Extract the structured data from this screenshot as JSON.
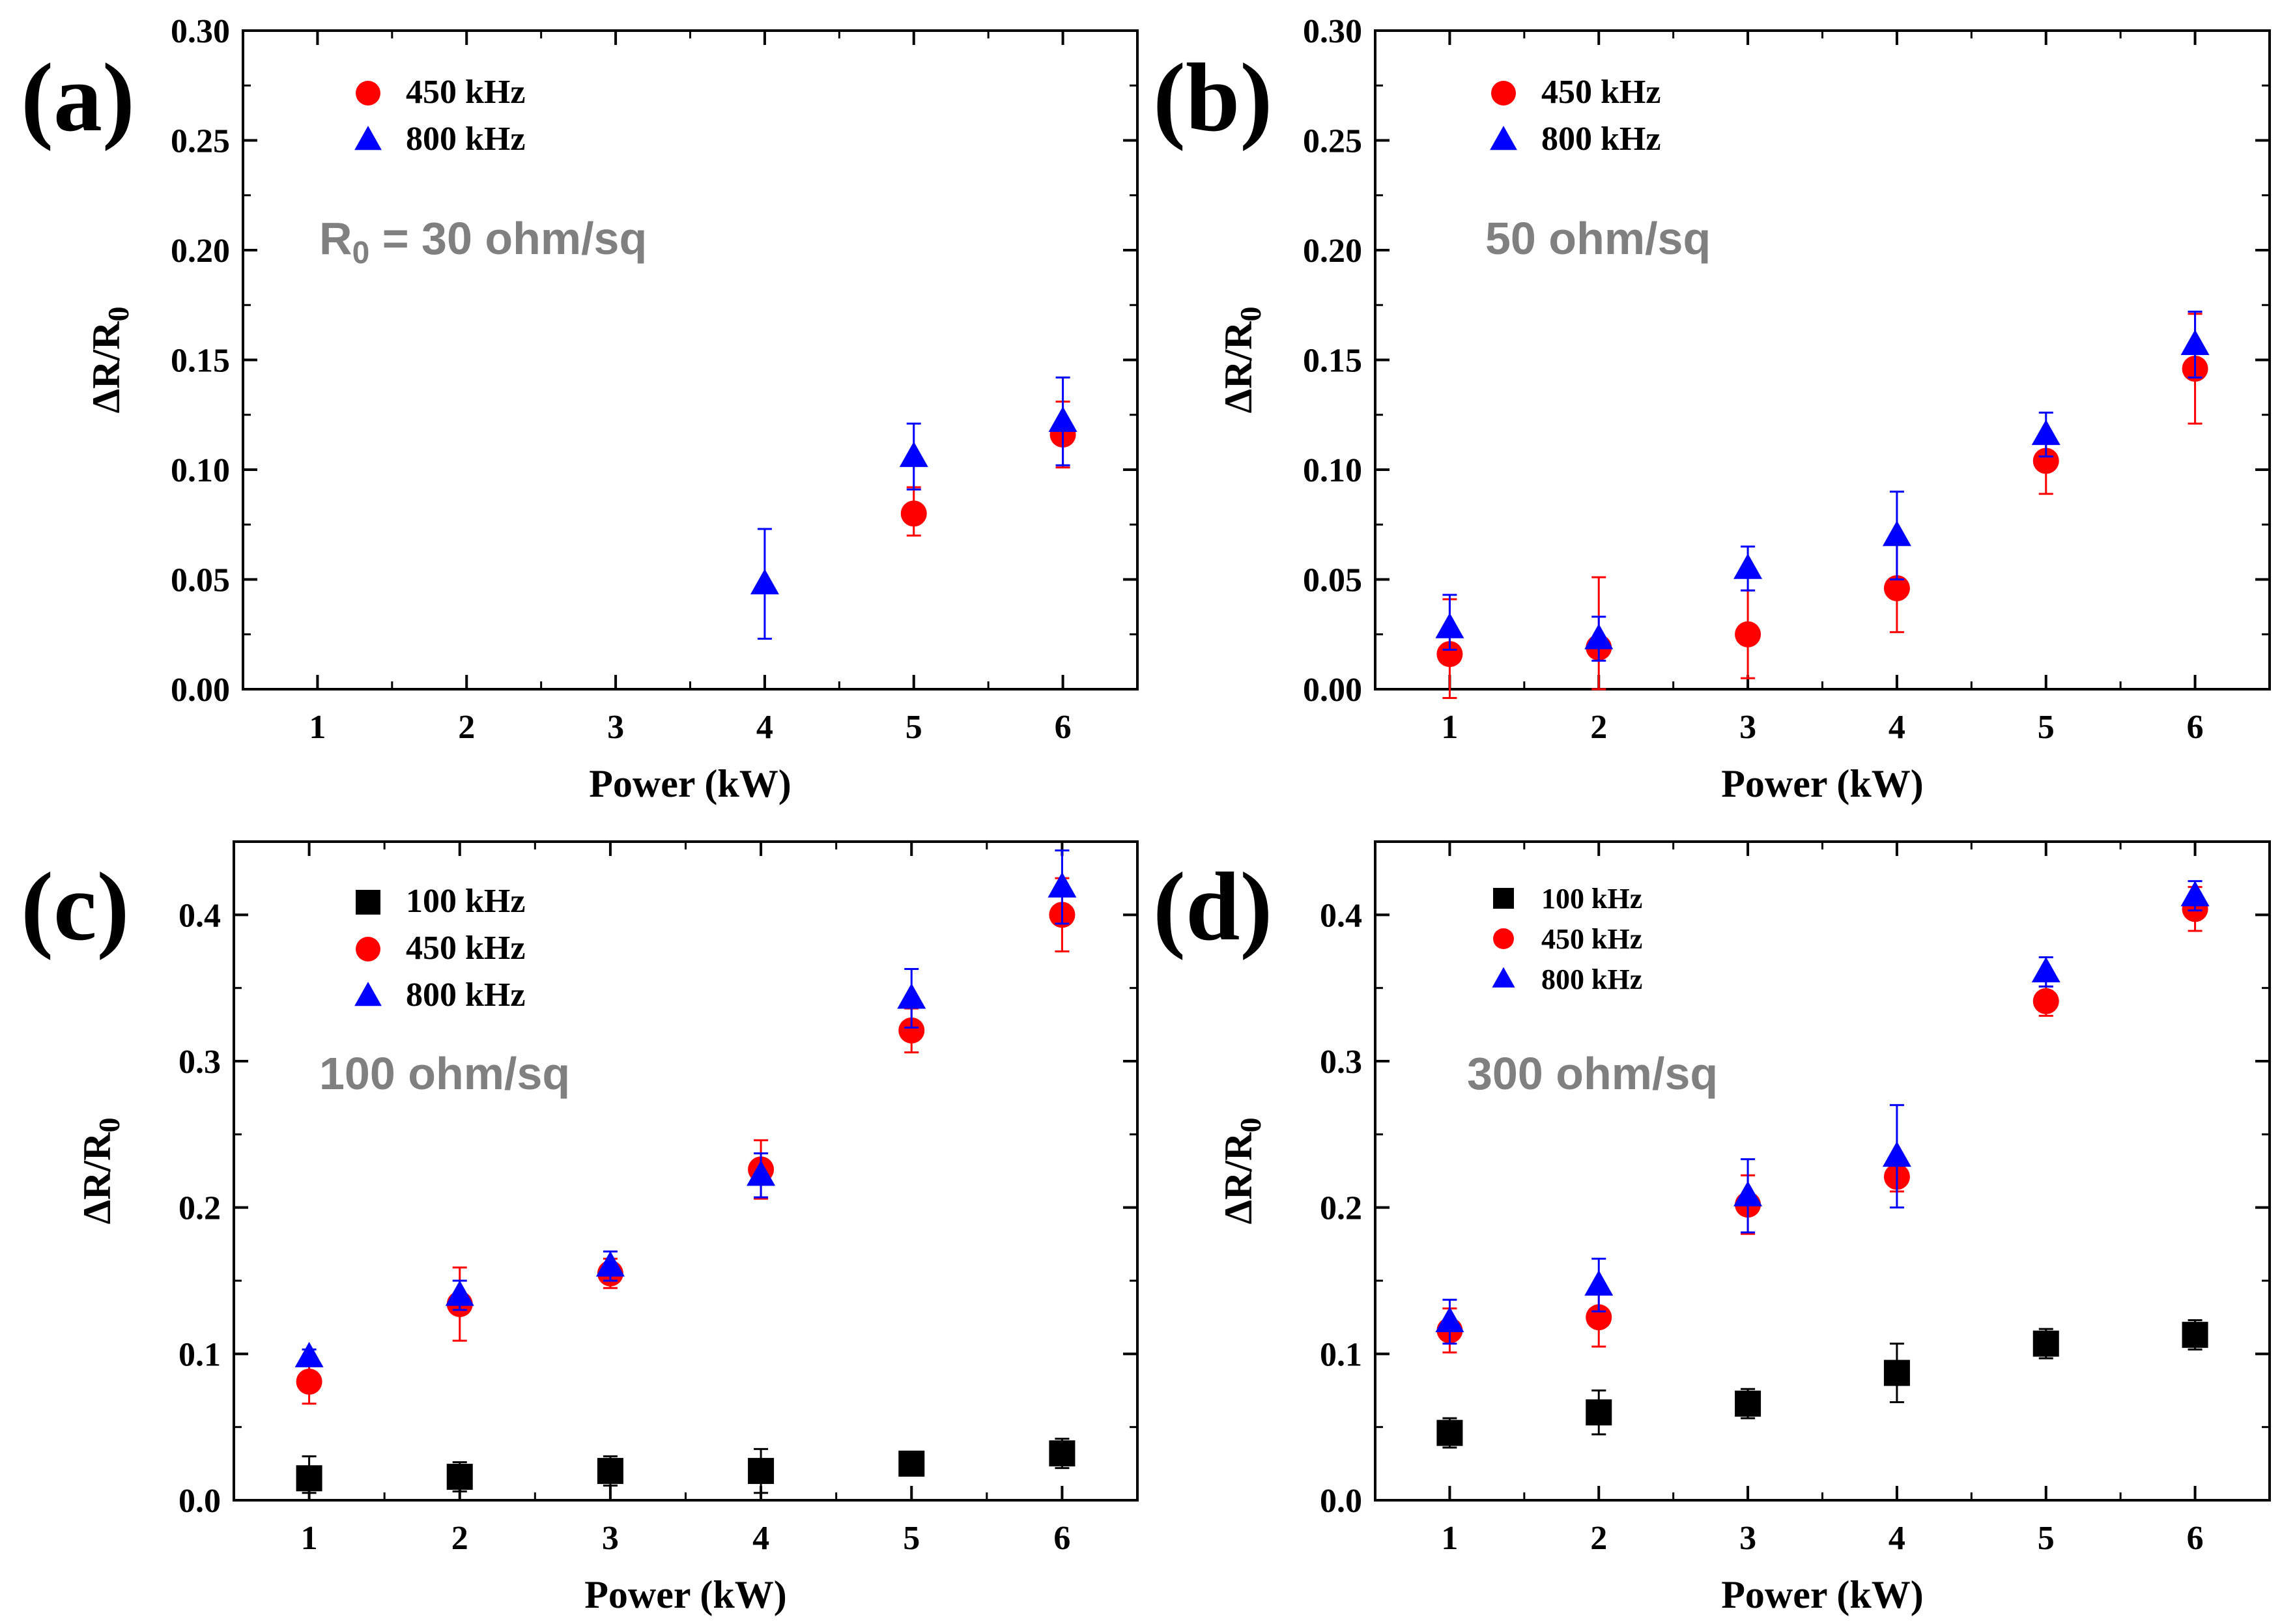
{
  "colors": {
    "100 kHz": "#000000",
    "450 kHz": "#ff0000",
    "800 kHz": "#0000ff",
    "annotation": "#808080"
  },
  "chart_data": [
    {
      "type": "scatter",
      "panel_label": "(a)",
      "annotation": {
        "main": "R",
        "sub": "0",
        "rest": " = 30 ohm/sq"
      },
      "xlabel": "Power (kW)",
      "ylabel": {
        "main": "ΔR/R",
        "sub": "0"
      },
      "xlim": [
        0.5,
        6.5
      ],
      "ylim": [
        0,
        0.3
      ],
      "xticks": [
        "1",
        "2",
        "3",
        "4",
        "5",
        "6"
      ],
      "yticks": [
        "0.00",
        "0.05",
        "0.10",
        "0.15",
        "0.20",
        "0.25",
        "0.30"
      ],
      "legend_font": 52,
      "series": [
        {
          "name": "450 kHz",
          "marker": "circle",
          "x": [
            5,
            6
          ],
          "y": [
            0.08,
            0.116
          ],
          "err_up": [
            0.012,
            0.015
          ],
          "err_down": [
            0.01,
            0.015
          ]
        },
        {
          "name": "800 kHz",
          "marker": "triangle",
          "x": [
            4,
            5,
            6
          ],
          "y": [
            0.048,
            0.106,
            0.122
          ],
          "err_up": [
            0.025,
            0.015,
            0.02
          ],
          "err_down": [
            0.025,
            0.015,
            0.02
          ]
        }
      ]
    },
    {
      "type": "scatter",
      "panel_label": "(b)",
      "annotation": {
        "main": "50 ohm/sq",
        "sub": "",
        "rest": ""
      },
      "xlabel": "Power (kW)",
      "ylabel": {
        "main": "ΔR/R",
        "sub": "0"
      },
      "xlim": [
        0.5,
        6.5
      ],
      "ylim": [
        0,
        0.3
      ],
      "xticks": [
        "1",
        "2",
        "3",
        "4",
        "5",
        "6"
      ],
      "yticks": [
        "0.00",
        "0.05",
        "0.10",
        "0.15",
        "0.20",
        "0.25",
        "0.30"
      ],
      "legend_font": 52,
      "series": [
        {
          "name": "450 kHz",
          "marker": "circle",
          "x": [
            1,
            2,
            3,
            4,
            5,
            6
          ],
          "y": [
            0.016,
            0.019,
            0.025,
            0.046,
            0.104,
            0.146
          ],
          "err_up": [
            0.025,
            0.032,
            0.02,
            0.022,
            0.012,
            0.025
          ],
          "err_down": [
            0.02,
            0.019,
            0.02,
            0.02,
            0.015,
            0.025
          ]
        },
        {
          "name": "800 kHz",
          "marker": "triangle",
          "x": [
            1,
            2,
            3,
            4,
            5,
            6
          ],
          "y": [
            0.028,
            0.023,
            0.055,
            0.07,
            0.116,
            0.157
          ],
          "err_up": [
            0.015,
            0.01,
            0.01,
            0.02,
            0.01,
            0.015
          ],
          "err_down": [
            0.01,
            0.01,
            0.01,
            0.02,
            0.01,
            0.015
          ]
        }
      ]
    },
    {
      "type": "scatter",
      "panel_label": "(c)",
      "annotation": {
        "main": "100 ohm/sq",
        "sub": "",
        "rest": ""
      },
      "xlabel": "Power (kW)",
      "ylabel": {
        "main": "ΔR/R",
        "sub": "0"
      },
      "xlim": [
        0.5,
        6.5
      ],
      "ylim": [
        0,
        0.45
      ],
      "xticks": [
        "1",
        "2",
        "3",
        "4",
        "5",
        "6"
      ],
      "yticks": [
        "0.0",
        "0.1",
        "0.2",
        "0.3",
        "0.4"
      ],
      "legend_font": 52,
      "series": [
        {
          "name": "100 kHz",
          "marker": "square",
          "x": [
            1,
            2,
            3,
            4,
            5,
            6
          ],
          "y": [
            0.015,
            0.016,
            0.02,
            0.02,
            0.025,
            0.032
          ],
          "err_up": [
            0.015,
            0.01,
            0.01,
            0.015,
            0.005,
            0.01
          ],
          "err_down": [
            0.01,
            0.01,
            0.01,
            0.015,
            0.005,
            0.01
          ]
        },
        {
          "name": "450 kHz",
          "marker": "circle",
          "x": [
            1,
            2,
            3,
            4,
            5,
            6
          ],
          "y": [
            0.081,
            0.134,
            0.155,
            0.226,
            0.321,
            0.4
          ],
          "err_up": [
            0.015,
            0.025,
            0.01,
            0.02,
            0.015,
            0.025
          ],
          "err_down": [
            0.015,
            0.025,
            0.01,
            0.02,
            0.015,
            0.025
          ]
        },
        {
          "name": "800 kHz",
          "marker": "triangle",
          "x": [
            1,
            2,
            3,
            4,
            5,
            6
          ],
          "y": [
            0.098,
            0.14,
            0.16,
            0.222,
            0.343,
            0.419
          ],
          "err_up": [
            0.005,
            0.01,
            0.01,
            0.015,
            0.02,
            0.025
          ],
          "err_down": [
            0.005,
            0.01,
            0.01,
            0.015,
            0.02,
            0.025
          ]
        }
      ]
    },
    {
      "type": "scatter",
      "panel_label": "(d)",
      "annotation": {
        "main": "300 ohm/sq",
        "sub": "",
        "rest": ""
      },
      "xlabel": "Power (kW)",
      "ylabel": {
        "main": "ΔR/R",
        "sub": "0"
      },
      "xlim": [
        0.5,
        6.5
      ],
      "ylim": [
        0,
        0.45
      ],
      "xticks": [
        "1",
        "2",
        "3",
        "4",
        "5",
        "6"
      ],
      "yticks": [
        "0.0",
        "0.1",
        "0.2",
        "0.3",
        "0.4"
      ],
      "legend_font": 44,
      "series": [
        {
          "name": "100 kHz",
          "marker": "square",
          "x": [
            1,
            2,
            3,
            4,
            5,
            6
          ],
          "y": [
            0.046,
            0.06,
            0.066,
            0.087,
            0.107,
            0.113
          ],
          "err_up": [
            0.01,
            0.015,
            0.01,
            0.02,
            0.01,
            0.01
          ],
          "err_down": [
            0.01,
            0.015,
            0.01,
            0.02,
            0.01,
            0.01
          ]
        },
        {
          "name": "450 kHz",
          "marker": "circle",
          "x": [
            1,
            2,
            3,
            4,
            5,
            6
          ],
          "y": [
            0.116,
            0.125,
            0.202,
            0.221,
            0.341,
            0.404
          ],
          "err_up": [
            0.015,
            0.02,
            0.02,
            0.01,
            0.01,
            0.015
          ],
          "err_down": [
            0.015,
            0.02,
            0.02,
            0.01,
            0.01,
            0.015
          ]
        },
        {
          "name": "800 kHz",
          "marker": "triangle",
          "x": [
            1,
            2,
            3,
            4,
            5,
            6
          ],
          "y": [
            0.122,
            0.147,
            0.208,
            0.235,
            0.361,
            0.413
          ],
          "err_up": [
            0.015,
            0.018,
            0.025,
            0.035,
            0.01,
            0.01
          ],
          "err_down": [
            0.015,
            0.018,
            0.025,
            0.035,
            0.01,
            0.01
          ]
        }
      ]
    }
  ]
}
